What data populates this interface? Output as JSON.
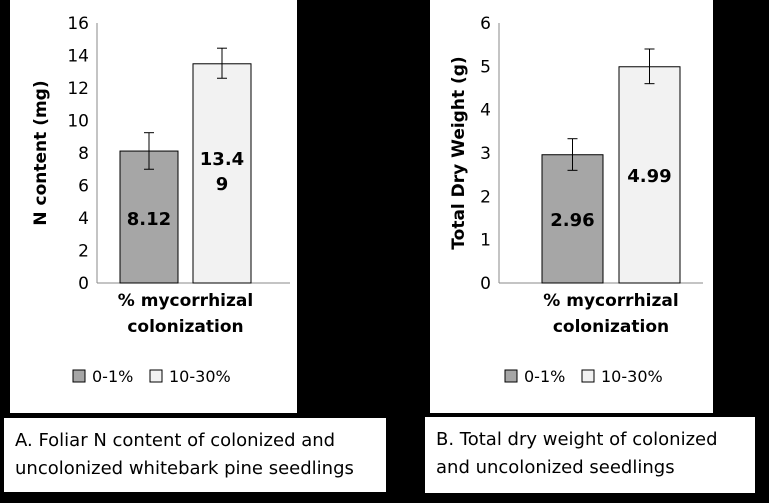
{
  "chart_data": [
    {
      "type": "bar",
      "categories": [
        "% mycorrhizal colonization"
      ],
      "category_label_lines": [
        "% mycorrhizal",
        "colonization"
      ],
      "ylabel": "N content (mg)",
      "ylim": [
        0,
        16
      ],
      "yticks": [
        0,
        2,
        4,
        6,
        8,
        10,
        12,
        14,
        16
      ],
      "ytick_labels": [
        "0",
        "2",
        "4",
        "6",
        "8",
        "10",
        "12",
        "14",
        "16"
      ],
      "series": [
        {
          "name": "0-1%",
          "values": [
            8.12
          ],
          "error_low": [
            7.0
          ],
          "error_high": [
            9.25
          ],
          "data_label": [
            "8.12"
          ],
          "color": "#a6a6a6"
        },
        {
          "name": "10-30%",
          "values": [
            13.49
          ],
          "error_low": [
            12.6
          ],
          "error_high": [
            14.45
          ],
          "data_label": [
            "13.4",
            "9"
          ],
          "color": "#f2f2f2"
        }
      ],
      "legend_position": "bottom",
      "grid": false
    },
    {
      "type": "bar",
      "categories": [
        "% mycorrhizal colonization"
      ],
      "category_label_lines": [
        "% mycorrhizal",
        "colonization"
      ],
      "ylabel": "Total Dry Weight (g)",
      "ylim": [
        0,
        6
      ],
      "yticks": [
        0,
        1,
        2,
        3,
        4,
        5,
        6
      ],
      "ytick_labels": [
        "0",
        "1",
        "2",
        "3",
        "4",
        "5",
        "6"
      ],
      "series": [
        {
          "name": "0-1%",
          "values": [
            2.96
          ],
          "error_low": [
            2.6
          ],
          "error_high": [
            3.33
          ],
          "data_label": [
            "2.96"
          ],
          "color": "#a6a6a6"
        },
        {
          "name": "10-30%",
          "values": [
            4.99
          ],
          "error_low": [
            4.6
          ],
          "error_high": [
            5.4
          ],
          "data_label": [
            "4.99"
          ],
          "color": "#f2f2f2"
        }
      ],
      "legend_position": "bottom",
      "grid": false
    }
  ],
  "captions": {
    "a": [
      "A. Foliar N content of colonized and",
      "uncolonized whitebark pine seedlings"
    ],
    "b": [
      "B. Total dry weight of colonized",
      "and uncolonized seedlings"
    ]
  }
}
